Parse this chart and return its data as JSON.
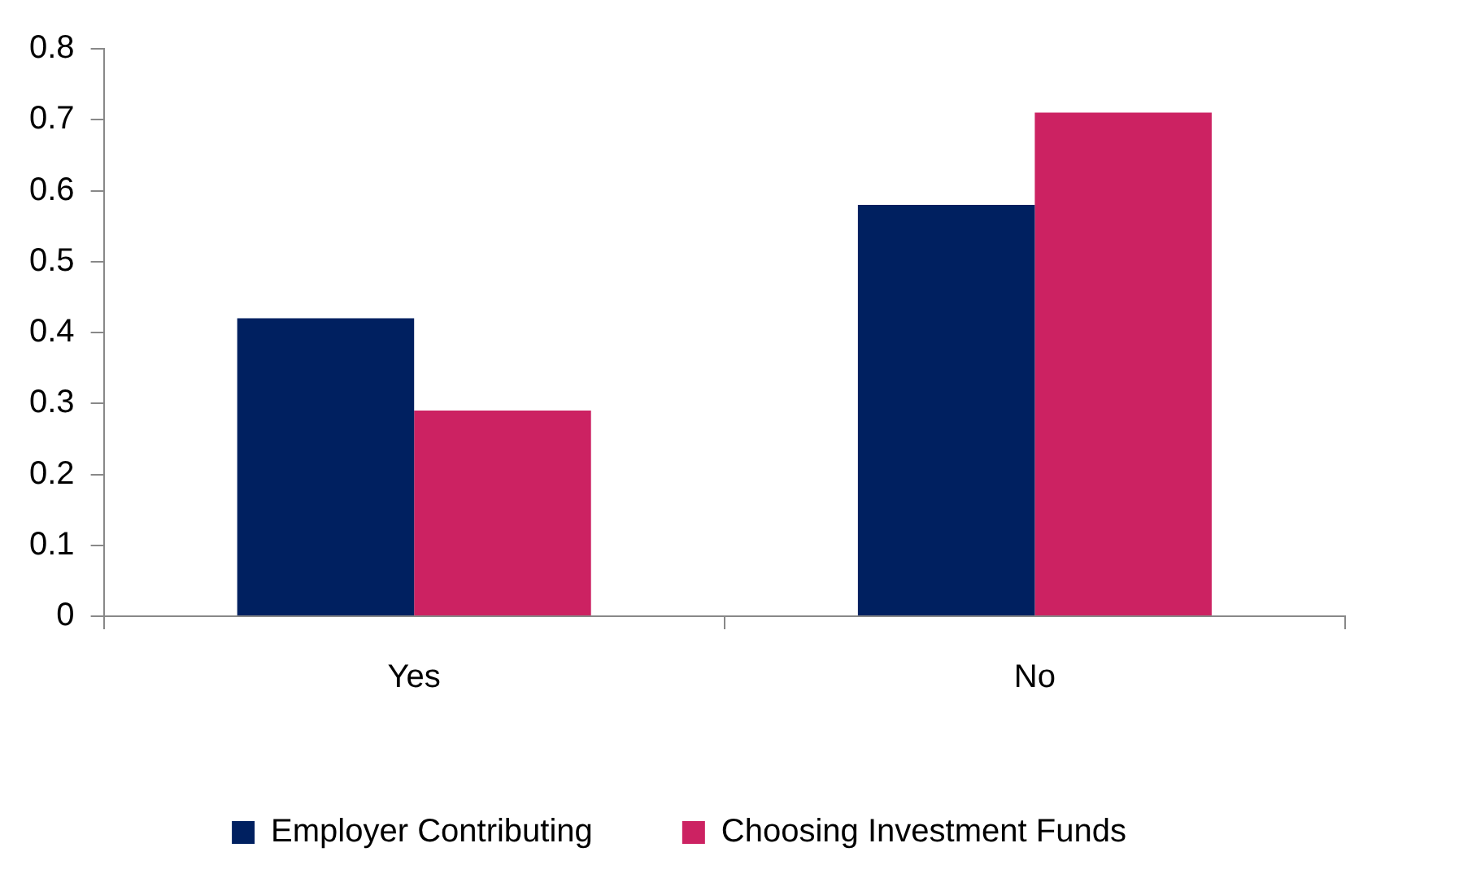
{
  "chart_data": {
    "type": "bar",
    "categories": [
      "Yes",
      "No"
    ],
    "series": [
      {
        "name": "Employer Contributing",
        "color": "#002060",
        "values": [
          0.42,
          0.58
        ]
      },
      {
        "name": "Choosing Investment Funds",
        "color": "#cc2262",
        "values": [
          0.29,
          0.71
        ]
      }
    ],
    "ylim": [
      0,
      0.8
    ],
    "yticks": [
      0,
      0.1,
      0.2,
      0.3,
      0.4,
      0.5,
      0.6,
      0.7,
      0.8
    ],
    "grid": false,
    "legend": "bottom"
  }
}
